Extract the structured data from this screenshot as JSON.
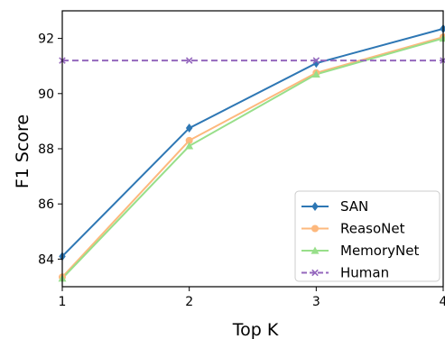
{
  "chart_data": {
    "type": "line",
    "x": [
      1,
      2,
      3,
      4
    ],
    "xticks": [
      "1",
      "2",
      "3",
      "4"
    ],
    "yticks": [
      "84",
      "86",
      "88",
      "90",
      "92"
    ],
    "xlabel": "Top K",
    "ylabel": "F1 Score",
    "xlim": [
      1,
      4
    ],
    "ylim": [
      83.0,
      93.0
    ],
    "grid": false,
    "legend_position": "lower-right",
    "series": [
      {
        "name": "SAN",
        "values": [
          84.1,
          88.75,
          91.1,
          92.35
        ],
        "color": "#2e77b4",
        "marker": "diamond",
        "dash": "solid"
      },
      {
        "name": "ReasoNet",
        "values": [
          83.35,
          88.3,
          90.75,
          92.05
        ],
        "color": "#fdb87d",
        "marker": "circle",
        "dash": "solid"
      },
      {
        "name": "MemoryNet",
        "values": [
          83.3,
          88.1,
          90.7,
          92.0
        ],
        "color": "#98df8a",
        "marker": "triangle",
        "dash": "solid"
      },
      {
        "name": "Human",
        "values": [
          91.2,
          91.2,
          91.2,
          91.2
        ],
        "color": "#9467bd",
        "marker": "x",
        "dash": "dashed"
      }
    ]
  }
}
